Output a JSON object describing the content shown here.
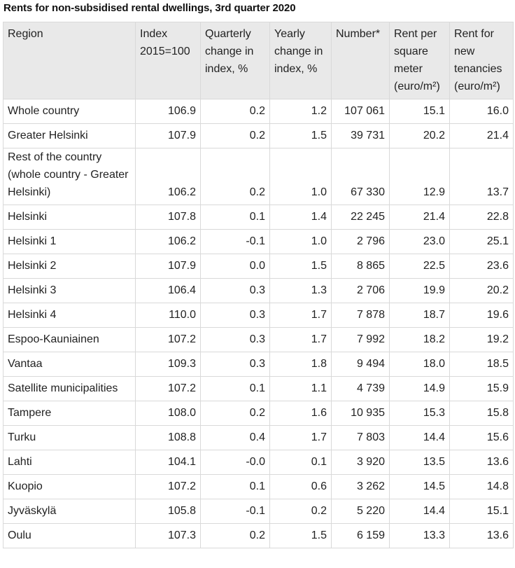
{
  "title": "Rents for non-subsidised rental dwellings, 3rd quarter 2020",
  "columns": [
    "Region",
    "Index 2015=100",
    "Quarterly change in index, %",
    "Yearly change in index, %",
    "Number*",
    "Rent per square meter (euro/m²)",
    "Rent for new tenancies (euro/m²)"
  ],
  "rows": [
    [
      "Whole country",
      "106.9",
      "0.2",
      "1.2",
      "107 061",
      "15.1",
      "16.0"
    ],
    [
      "Greater Helsinki",
      "107.9",
      "0.2",
      "1.5",
      "39 731",
      "20.2",
      "21.4"
    ],
    [
      "Rest of the country (whole country - Greater Helsinki)",
      "106.2",
      "0.2",
      "1.0",
      "67 330",
      "12.9",
      "13.7"
    ],
    [
      "Helsinki",
      "107.8",
      "0.1",
      "1.4",
      "22 245",
      "21.4",
      "22.8"
    ],
    [
      "Helsinki 1",
      "106.2",
      "-0.1",
      "1.0",
      "2 796",
      "23.0",
      "25.1"
    ],
    [
      "Helsinki 2",
      "107.9",
      "0.0",
      "1.5",
      "8 865",
      "22.5",
      "23.6"
    ],
    [
      "Helsinki 3",
      "106.4",
      "0.3",
      "1.3",
      "2 706",
      "19.9",
      "20.2"
    ],
    [
      "Helsinki 4",
      "110.0",
      "0.3",
      "1.7",
      "7 878",
      "18.7",
      "19.6"
    ],
    [
      "Espoo-Kauniainen",
      "107.2",
      "0.3",
      "1.7",
      "7 992",
      "18.2",
      "19.2"
    ],
    [
      "Vantaa",
      "109.3",
      "0.3",
      "1.8",
      "9 494",
      "18.0",
      "18.5"
    ],
    [
      "Satellite municipalities",
      "107.2",
      "0.1",
      "1.1",
      "4 739",
      "14.9",
      "15.9"
    ],
    [
      "Tampere",
      "108.0",
      "0.2",
      "1.6",
      "10 935",
      "15.3",
      "15.8"
    ],
    [
      "Turku",
      "108.8",
      "0.4",
      "1.7",
      "7 803",
      "14.4",
      "15.6"
    ],
    [
      "Lahti",
      "104.1",
      "-0.0",
      "0.1",
      "3 920",
      "13.5",
      "13.6"
    ],
    [
      "Kuopio",
      "107.2",
      "0.1",
      "0.6",
      "3 262",
      "14.5",
      "14.8"
    ],
    [
      "Jyväskylä",
      "105.8",
      "-0.1",
      "0.2",
      "5 220",
      "14.4",
      "15.1"
    ],
    [
      "Oulu",
      "107.3",
      "0.2",
      "1.5",
      "6 159",
      "13.3",
      "13.6"
    ]
  ]
}
